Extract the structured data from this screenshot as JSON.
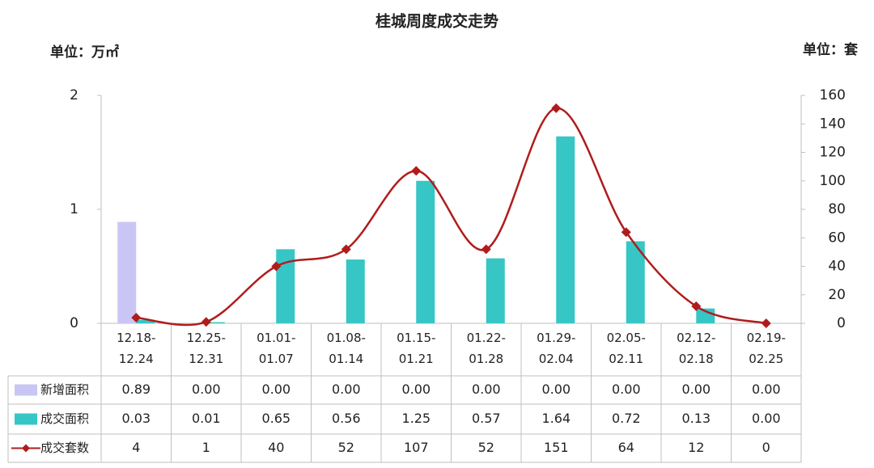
{
  "chart_data": {
    "type": "bar-line",
    "title": "桂城周度成交走势",
    "y_label": "单位：万㎡",
    "y2_label": "单位：套",
    "categories": [
      "12.18-12.24",
      "12.25-12.31",
      "01.01-01.07",
      "01.08-01.14",
      "01.15-01.21",
      "01.22-01.28",
      "01.29-02.04",
      "02.05-02.11",
      "02.12-02.18",
      "02.19-02.25"
    ],
    "series": [
      {
        "name": "新增面积",
        "type": "bar",
        "color": "#c9c6f5",
        "values": [
          0.89,
          0,
          0,
          0,
          0,
          0,
          0,
          0,
          0,
          0
        ],
        "value_labels": [
          "0.89",
          "0.00",
          "0.00",
          "0.00",
          "0.00",
          "0.00",
          "0.00",
          "0.00",
          "0.00",
          "0.00"
        ]
      },
      {
        "name": "成交面积",
        "type": "bar",
        "color": "#36c6c6",
        "values": [
          0.03,
          0.01,
          0.65,
          0.56,
          1.25,
          0.57,
          1.64,
          0.72,
          0.13,
          0
        ],
        "value_labels": [
          "0.03",
          "0.01",
          "0.65",
          "0.56",
          "1.25",
          "0.57",
          "1.64",
          "0.72",
          "0.13",
          "0.00"
        ]
      },
      {
        "name": "成交套数",
        "type": "line",
        "axis": "y2",
        "color": "#b01c1c",
        "values": [
          4,
          1,
          40,
          52,
          107,
          52,
          151,
          64,
          12,
          0
        ]
      }
    ],
    "ylim": [
      0,
      2
    ],
    "yticks": [
      0,
      1,
      2
    ],
    "y2lim": [
      0,
      160
    ],
    "y2ticks": [
      0,
      20,
      40,
      60,
      80,
      100,
      120,
      140,
      160
    ]
  }
}
